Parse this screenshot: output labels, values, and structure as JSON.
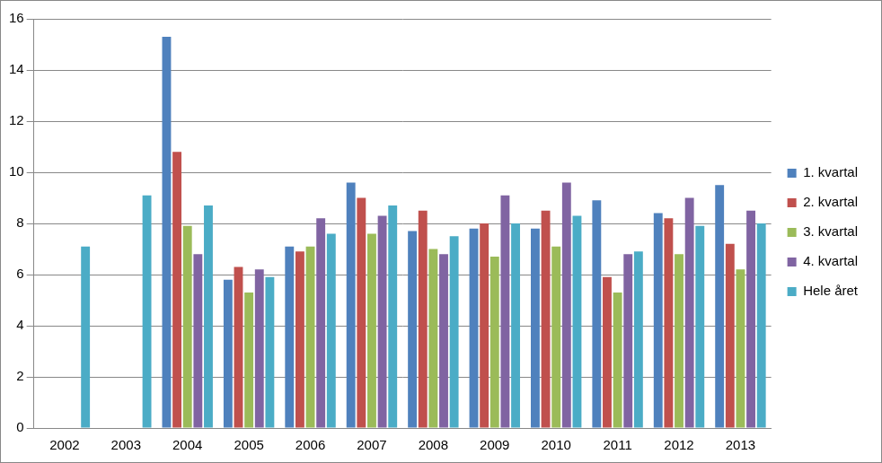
{
  "chart_data": {
    "type": "bar",
    "categories": [
      "2002",
      "2003",
      "2004",
      "2005",
      "2006",
      "2007",
      "2008",
      "2009",
      "2010",
      "2011",
      "2012",
      "2013"
    ],
    "series": [
      {
        "name": "1. kvartal",
        "color": "#4F81BD",
        "values": [
          null,
          null,
          15.3,
          5.8,
          7.1,
          9.6,
          7.7,
          7.8,
          7.8,
          8.9,
          8.4,
          9.5
        ]
      },
      {
        "name": "2. kvartal",
        "color": "#C0504D",
        "values": [
          null,
          null,
          10.8,
          6.3,
          6.9,
          9.0,
          8.5,
          8.0,
          8.5,
          5.9,
          8.2,
          7.2
        ]
      },
      {
        "name": "3. kvartal",
        "color": "#9BBB59",
        "values": [
          null,
          null,
          7.9,
          5.3,
          7.1,
          7.6,
          7.0,
          6.7,
          7.1,
          5.3,
          6.8,
          6.2
        ]
      },
      {
        "name": "4. kvartal",
        "color": "#8064A2",
        "values": [
          null,
          null,
          6.8,
          6.2,
          8.2,
          8.3,
          6.8,
          9.1,
          9.6,
          6.8,
          9.0,
          8.5
        ]
      },
      {
        "name": "Hele året",
        "color": "#4BACC6",
        "values": [
          7.1,
          9.1,
          8.7,
          5.9,
          7.6,
          8.7,
          7.5,
          8.0,
          8.3,
          6.9,
          7.9,
          8.0
        ]
      }
    ],
    "ylim": [
      0,
      16
    ],
    "yticks": [
      0,
      2,
      4,
      6,
      8,
      10,
      12,
      14,
      16
    ],
    "grid": true,
    "legend": "right"
  }
}
